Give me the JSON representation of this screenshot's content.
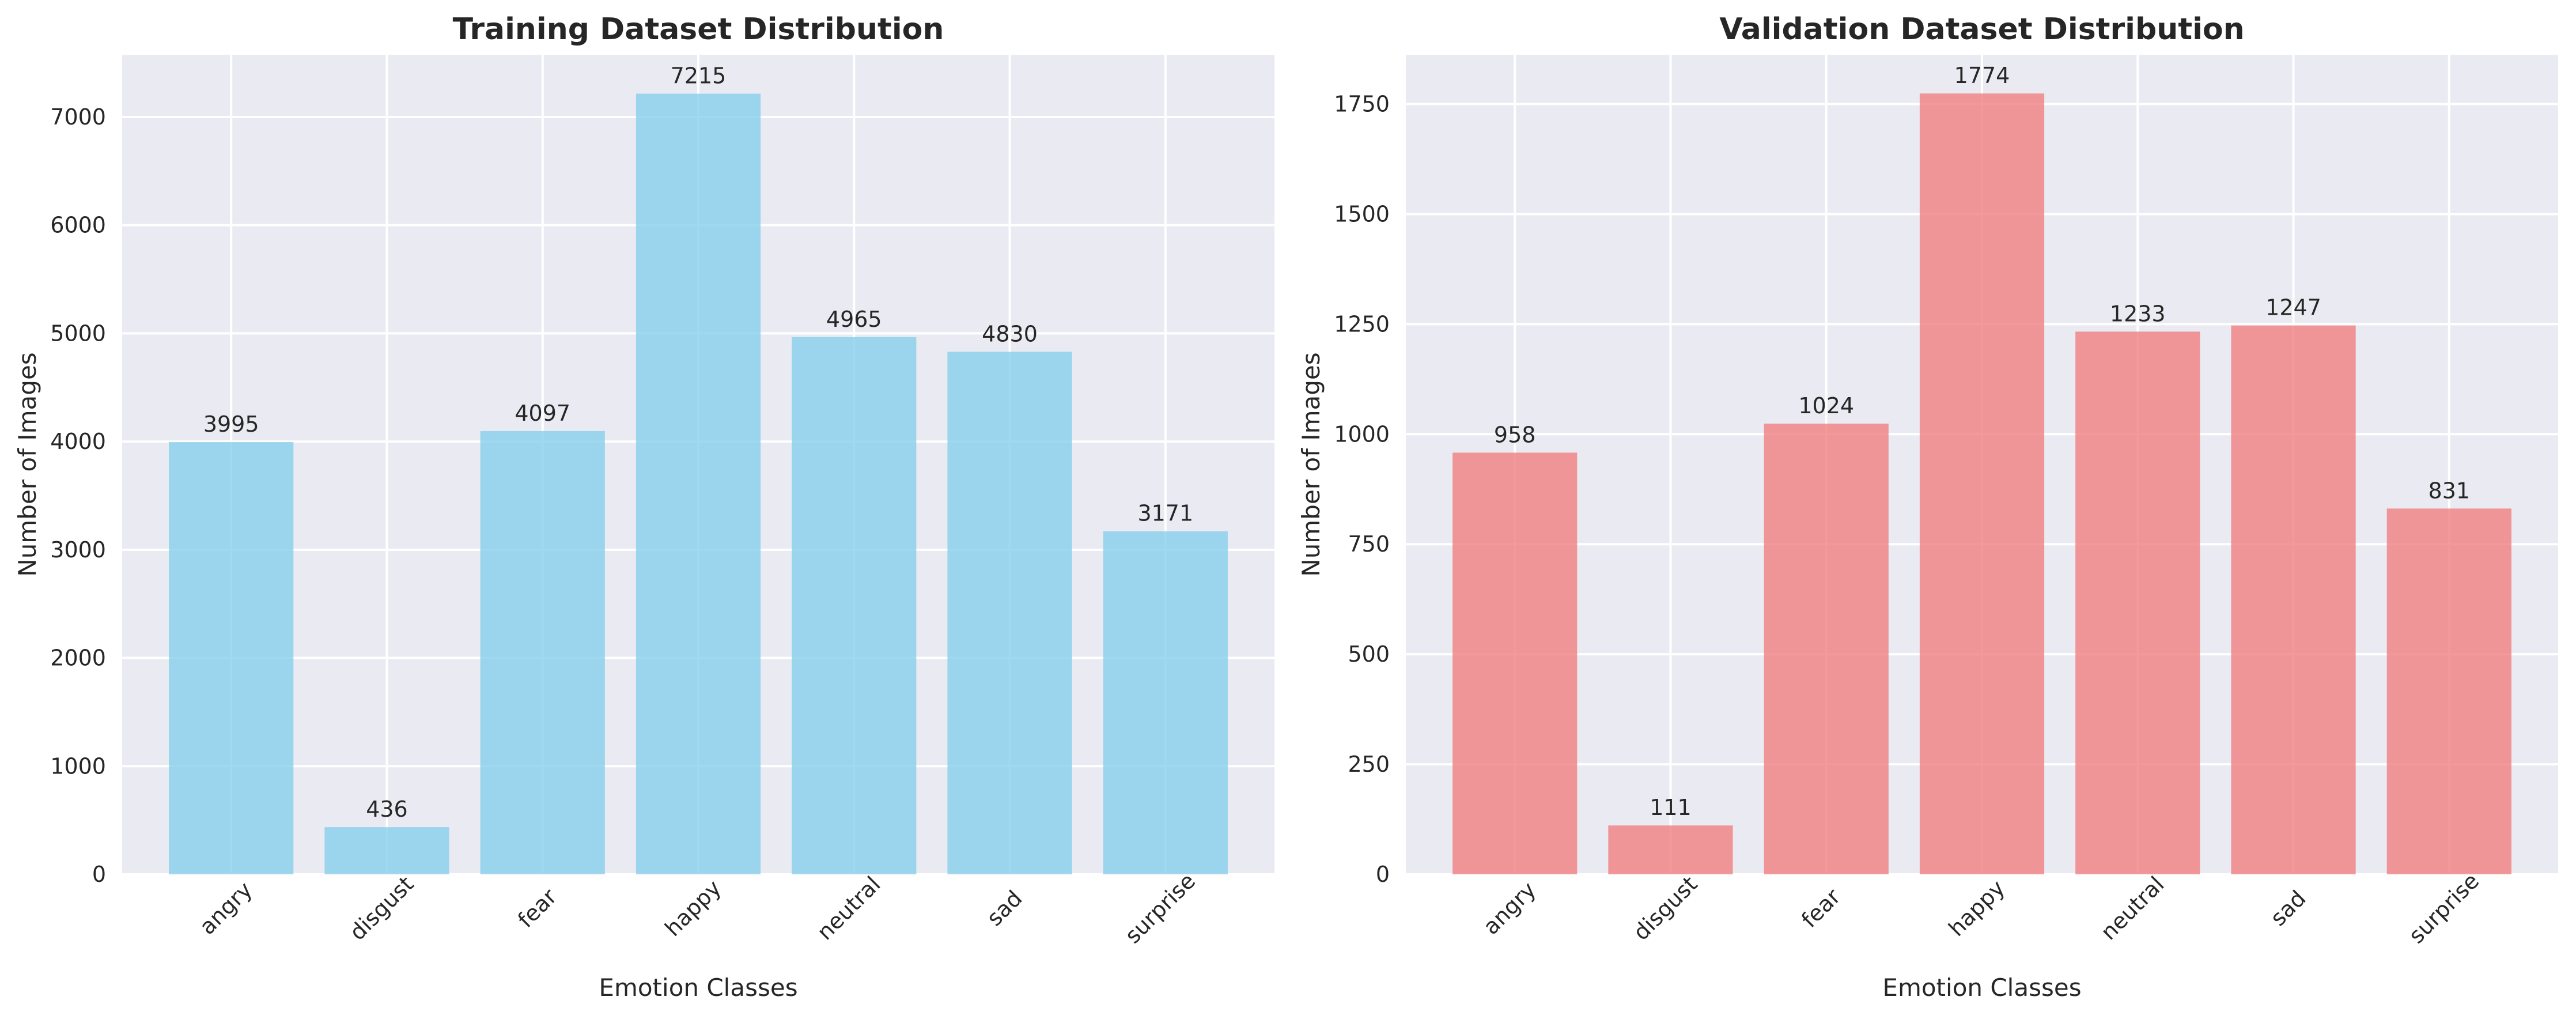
{
  "chart_data": [
    {
      "type": "bar",
      "title": "Training Dataset Distribution",
      "xlabel": "Emotion Classes",
      "ylabel": "Number of Images",
      "categories": [
        "angry",
        "disgust",
        "fear",
        "happy",
        "neutral",
        "sad",
        "surprise"
      ],
      "values": [
        3995,
        436,
        4097,
        7215,
        4965,
        4830,
        3171
      ],
      "ylim": [
        0,
        7575
      ],
      "yticks": [
        0,
        1000,
        2000,
        3000,
        4000,
        5000,
        6000,
        7000
      ],
      "color": "#87ceeb",
      "grid": true,
      "legend": "none"
    },
    {
      "type": "bar",
      "title": "Validation Dataset Distribution",
      "xlabel": "Emotion Classes",
      "ylabel": "Number of Images",
      "categories": [
        "angry",
        "disgust",
        "fear",
        "happy",
        "neutral",
        "sad",
        "surprise"
      ],
      "values": [
        958,
        111,
        1024,
        1774,
        1233,
        1247,
        831
      ],
      "ylim": [
        0,
        1862
      ],
      "yticks": [
        0,
        250,
        500,
        750,
        1000,
        1250,
        1500,
        1750
      ],
      "color": "#f08080",
      "grid": true,
      "legend": "none"
    }
  ]
}
